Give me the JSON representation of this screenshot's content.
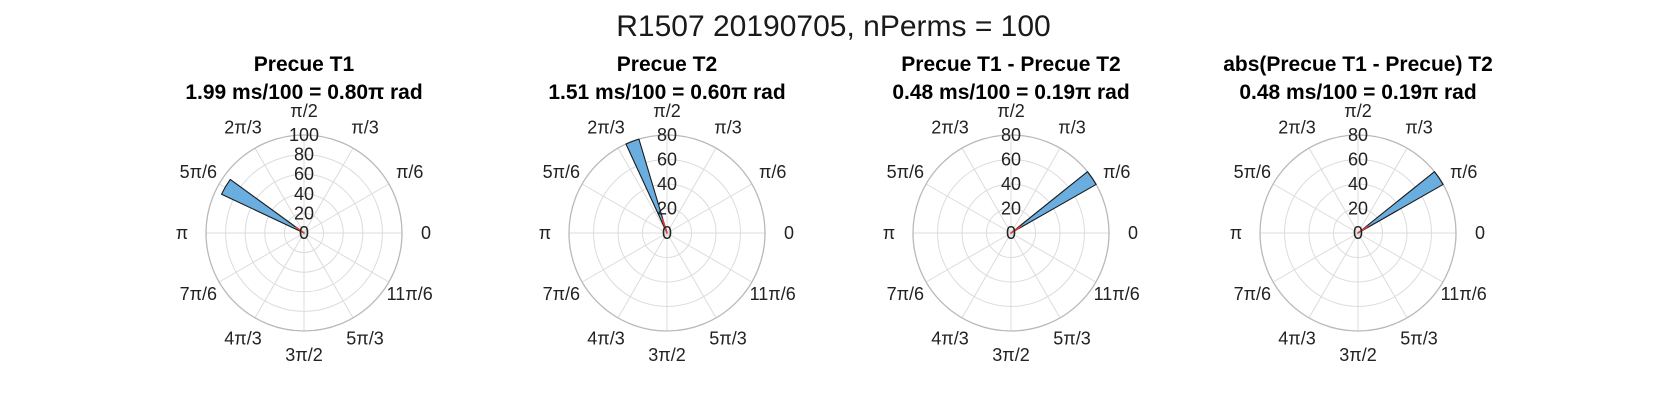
{
  "figure": {
    "suptitle": "R1507 20190705, nPerms = 100"
  },
  "theta_tick_labels": [
    "0",
    "π/6",
    "π/3",
    "π/2",
    "2π/3",
    "5π/6",
    "π",
    "7π/6",
    "4π/3",
    "3π/2",
    "5π/3",
    "11π/6"
  ],
  "colors": {
    "bar_fill": "#6aaee0",
    "bar_edge": "#1a1a1a",
    "mean_line": "#e0393e",
    "grid": "#dcdcdc",
    "outer_circle": "#b9b9b9"
  },
  "chart_data": [
    {
      "type": "polar-histogram",
      "title": "Precue T1",
      "subtitle": "1.99 ms/100 = 0.80π rad",
      "r_ticks": [
        0,
        20,
        40,
        60,
        80,
        100
      ],
      "rlim": [
        0,
        100
      ],
      "bar": {
        "theta_center_pi": 0.83,
        "width_pi": 0.06,
        "count": 93
      },
      "mean_vector": {
        "theta_pi": 0.8,
        "length": 10
      }
    },
    {
      "type": "polar-histogram",
      "title": "Precue T2",
      "subtitle": "1.51 ms/100 = 0.60π rad",
      "r_ticks": [
        0,
        20,
        40,
        60,
        80
      ],
      "rlim": [
        0,
        80
      ],
      "bar": {
        "theta_center_pi": 0.615,
        "width_pi": 0.045,
        "count": 80
      },
      "mean_vector": {
        "theta_pi": 0.6,
        "length": 12
      }
    },
    {
      "type": "polar-histogram",
      "title": "Precue T1 - Precue T2",
      "subtitle": "0.48 ms/100 = 0.19π rad",
      "r_ticks": [
        0,
        20,
        40,
        60,
        80
      ],
      "rlim": [
        0,
        80
      ],
      "bar": {
        "theta_center_pi": 0.19,
        "width_pi": 0.05,
        "count": 80
      },
      "mean_vector": {
        "theta_pi": 0.19,
        "length": 10
      }
    },
    {
      "type": "polar-histogram",
      "title": "abs(Precue T1 - Precue) T2",
      "subtitle": "0.48 ms/100 = 0.19π rad",
      "r_ticks": [
        0,
        20,
        40,
        60,
        80
      ],
      "rlim": [
        0,
        80
      ],
      "bar": {
        "theta_center_pi": 0.19,
        "width_pi": 0.05,
        "count": 80
      },
      "mean_vector": {
        "theta_pi": 0.19,
        "length": 10
      }
    }
  ]
}
